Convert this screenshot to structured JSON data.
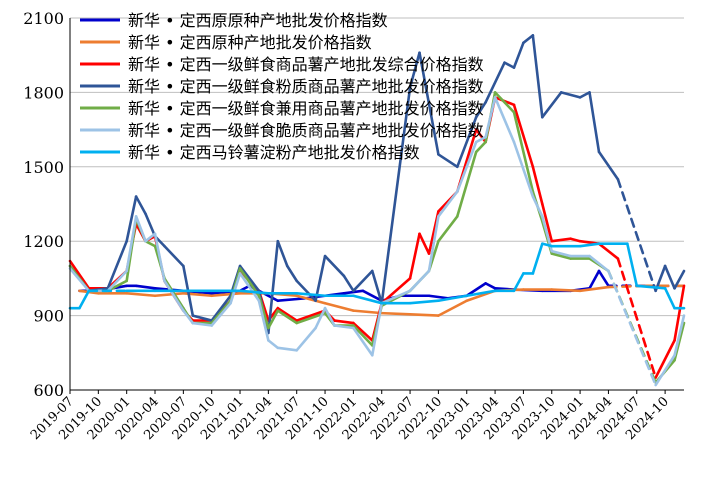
{
  "chart_data": {
    "type": "line",
    "title": "",
    "xlabel": "",
    "ylabel": "",
    "ylim": [
      600,
      2100
    ],
    "xlim": [
      "2019-07",
      "2024-12"
    ],
    "y_ticks": [
      600,
      900,
      1200,
      1500,
      1800,
      2100
    ],
    "x_ticks": [
      "2019-07",
      "2019-10",
      "2020-01",
      "2020-04",
      "2020-07",
      "2020-10",
      "2021-01",
      "2021-04",
      "2021-07",
      "2021-10",
      "2022-01",
      "2022-04",
      "2022-07",
      "2022-10",
      "2023-01",
      "2023-04",
      "2023-07",
      "2023-10",
      "2024-01",
      "2024-04",
      "2024-07",
      "2024-10"
    ],
    "grid": "horizontal",
    "legend_position": "top-left",
    "series": [
      {
        "name": "新华 • 定西原原种产地批发价格指数",
        "color": "#0000cc",
        "points": [
          [
            "2019-08",
            1000
          ],
          [
            "2019-10",
            1000
          ],
          [
            "2020-01",
            1020
          ],
          [
            "2020-02",
            1020
          ],
          [
            "2020-04",
            1010
          ],
          [
            "2020-07",
            1000
          ],
          [
            "2020-10",
            990
          ],
          [
            "2021-01",
            1000
          ],
          [
            "2021-02",
            1020
          ],
          [
            "2021-03",
            1000
          ],
          [
            "2021-05",
            960
          ],
          [
            "2021-08",
            970
          ],
          [
            "2021-10",
            980
          ],
          [
            "2021-12",
            990
          ],
          [
            "2022-02",
            1000
          ],
          [
            "2022-04",
            960
          ],
          [
            "2022-06",
            980
          ],
          [
            "2022-09",
            980
          ],
          [
            "2022-11",
            970
          ],
          [
            "2023-01",
            980
          ],
          [
            "2023-03",
            1030
          ],
          [
            "2023-04",
            1010
          ],
          [
            "2023-06",
            1005
          ],
          [
            "2023-09",
            1000
          ],
          [
            "2023-12",
            1000
          ],
          [
            "2024-02",
            1010
          ],
          [
            "2024-03",
            1080
          ],
          [
            "2024-04",
            1020
          ],
          [
            "2024-08",
            1020
          ],
          [
            "2024-12",
            1020
          ]
        ]
      },
      {
        "name": "新华 • 定西原种产地批发价格指数",
        "color": "#ed7d31",
        "points": [
          [
            "2019-08",
            1000
          ],
          [
            "2019-10",
            990
          ],
          [
            "2020-01",
            990
          ],
          [
            "2020-04",
            980
          ],
          [
            "2020-07",
            990
          ],
          [
            "2020-10",
            980
          ],
          [
            "2021-01",
            990
          ],
          [
            "2021-04",
            990
          ],
          [
            "2021-07",
            980
          ],
          [
            "2021-10",
            950
          ],
          [
            "2022-01",
            920
          ],
          [
            "2022-04",
            910
          ],
          [
            "2022-07",
            905
          ],
          [
            "2022-10",
            900
          ],
          [
            "2023-01",
            960
          ],
          [
            "2023-04",
            1000
          ],
          [
            "2023-07",
            1005
          ],
          [
            "2023-10",
            1005
          ],
          [
            "2024-01",
            1000
          ],
          [
            "2024-04",
            1015
          ],
          [
            "2024-08",
            1020
          ],
          [
            "2024-12",
            1020
          ]
        ]
      },
      {
        "name": "新华 • 定西一级鲜食商品薯产地批发综合价格指数",
        "color": "#ff0000",
        "points": [
          [
            "2019-07",
            1120
          ],
          [
            "2019-09",
            1010
          ],
          [
            "2019-11",
            1010
          ],
          [
            "2020-01",
            1080
          ],
          [
            "2020-02",
            1270
          ],
          [
            "2020-03",
            1200
          ],
          [
            "2020-04",
            1220
          ],
          [
            "2020-05",
            1040
          ],
          [
            "2020-07",
            920
          ],
          [
            "2020-08",
            880
          ],
          [
            "2020-10",
            880
          ],
          [
            "2020-12",
            960
          ],
          [
            "2021-01",
            1080
          ],
          [
            "2021-03",
            1000
          ],
          [
            "2021-04",
            880
          ],
          [
            "2021-05",
            930
          ],
          [
            "2021-07",
            880
          ],
          [
            "2021-10",
            920
          ],
          [
            "2021-11",
            880
          ],
          [
            "2022-01",
            870
          ],
          [
            "2022-03",
            800
          ],
          [
            "2022-04",
            950
          ],
          [
            "2022-07",
            1050
          ],
          [
            "2022-08",
            1230
          ],
          [
            "2022-09",
            1150
          ],
          [
            "2022-10",
            1320
          ],
          [
            "2022-12",
            1400
          ],
          [
            "2023-02",
            1650
          ],
          [
            "2023-03",
            1600
          ],
          [
            "2023-04",
            1780
          ],
          [
            "2023-06",
            1750
          ],
          [
            "2023-08",
            1500
          ],
          [
            "2023-09",
            1350
          ],
          [
            "2023-10",
            1200
          ],
          [
            "2023-12",
            1210
          ],
          [
            "2024-01",
            1200
          ],
          [
            "2024-03",
            1190
          ],
          [
            "2024-05",
            1130
          ],
          [
            "2024-09",
            650
          ],
          [
            "2024-11",
            800
          ],
          [
            "2024-12",
            1020
          ]
        ]
      },
      {
        "name": "新华 • 定西一级鲜食粉质商品薯产地批发价格指数",
        "color": "#2f5597",
        "points": [
          [
            "2019-07",
            1100
          ],
          [
            "2019-09",
            1000
          ],
          [
            "2019-11",
            1010
          ],
          [
            "2020-01",
            1200
          ],
          [
            "2020-02",
            1380
          ],
          [
            "2020-03",
            1310
          ],
          [
            "2020-04",
            1220
          ],
          [
            "2020-05",
            1180
          ],
          [
            "2020-07",
            1100
          ],
          [
            "2020-08",
            900
          ],
          [
            "2020-10",
            880
          ],
          [
            "2020-12",
            980
          ],
          [
            "2021-01",
            1100
          ],
          [
            "2021-03",
            1000
          ],
          [
            "2021-04",
            830
          ],
          [
            "2021-05",
            1200
          ],
          [
            "2021-06",
            1100
          ],
          [
            "2021-07",
            1040
          ],
          [
            "2021-09",
            960
          ],
          [
            "2021-10",
            1140
          ],
          [
            "2021-12",
            1060
          ],
          [
            "2022-01",
            1000
          ],
          [
            "2022-03",
            1080
          ],
          [
            "2022-04",
            950
          ],
          [
            "2022-07",
            1820
          ],
          [
            "2022-08",
            1960
          ],
          [
            "2022-10",
            1550
          ],
          [
            "2022-12",
            1500
          ],
          [
            "2023-02",
            1700
          ],
          [
            "2023-03",
            1760
          ],
          [
            "2023-05",
            1920
          ],
          [
            "2023-06",
            1900
          ],
          [
            "2023-07",
            2000
          ],
          [
            "2023-08",
            2030
          ],
          [
            "2023-09",
            1700
          ],
          [
            "2023-11",
            1800
          ],
          [
            "2024-01",
            1780
          ],
          [
            "2024-02",
            1800
          ],
          [
            "2024-03",
            1560
          ],
          [
            "2024-05",
            1450
          ],
          [
            "2024-09",
            1000
          ],
          [
            "2024-10",
            1100
          ],
          [
            "2024-11",
            1010
          ],
          [
            "2024-12",
            1080
          ]
        ]
      },
      {
        "name": "新华 • 定西一级鲜食兼用商品薯产地批发价格指数",
        "color": "#70ad47",
        "points": [
          [
            "2019-07",
            1100
          ],
          [
            "2019-09",
            1000
          ],
          [
            "2019-11",
            1000
          ],
          [
            "2020-01",
            1040
          ],
          [
            "2020-02",
            1290
          ],
          [
            "2020-03",
            1200
          ],
          [
            "2020-04",
            1180
          ],
          [
            "2020-05",
            1050
          ],
          [
            "2020-07",
            930
          ],
          [
            "2020-08",
            870
          ],
          [
            "2020-10",
            870
          ],
          [
            "2020-12",
            960
          ],
          [
            "2021-01",
            1090
          ],
          [
            "2021-03",
            980
          ],
          [
            "2021-04",
            850
          ],
          [
            "2021-05",
            920
          ],
          [
            "2021-07",
            870
          ],
          [
            "2021-10",
            910
          ],
          [
            "2021-11",
            860
          ],
          [
            "2022-01",
            860
          ],
          [
            "2022-03",
            780
          ],
          [
            "2022-04",
            940
          ],
          [
            "2022-07",
            1000
          ],
          [
            "2022-09",
            1080
          ],
          [
            "2022-10",
            1200
          ],
          [
            "2022-12",
            1300
          ],
          [
            "2023-02",
            1560
          ],
          [
            "2023-03",
            1600
          ],
          [
            "2023-04",
            1800
          ],
          [
            "2023-06",
            1720
          ],
          [
            "2023-08",
            1400
          ],
          [
            "2023-09",
            1280
          ],
          [
            "2023-10",
            1150
          ],
          [
            "2023-12",
            1130
          ],
          [
            "2024-02",
            1130
          ],
          [
            "2024-04",
            1080
          ],
          [
            "2024-09",
            630
          ],
          [
            "2024-11",
            720
          ],
          [
            "2024-12",
            870
          ]
        ]
      },
      {
        "name": "新华 • 定西一级鲜食脆质商品薯产地批发价格指数",
        "color": "#9dc3e6",
        "points": [
          [
            "2019-07",
            1090
          ],
          [
            "2019-09",
            1000
          ],
          [
            "2019-11",
            1000
          ],
          [
            "2020-01",
            1080
          ],
          [
            "2020-02",
            1300
          ],
          [
            "2020-03",
            1200
          ],
          [
            "2020-04",
            1230
          ],
          [
            "2020-05",
            1040
          ],
          [
            "2020-07",
            920
          ],
          [
            "2020-08",
            870
          ],
          [
            "2020-10",
            860
          ],
          [
            "2020-12",
            950
          ],
          [
            "2021-01",
            1070
          ],
          [
            "2021-03",
            960
          ],
          [
            "2021-04",
            800
          ],
          [
            "2021-05",
            770
          ],
          [
            "2021-07",
            760
          ],
          [
            "2021-09",
            850
          ],
          [
            "2021-10",
            930
          ],
          [
            "2021-11",
            860
          ],
          [
            "2022-01",
            850
          ],
          [
            "2022-03",
            740
          ],
          [
            "2022-04",
            950
          ],
          [
            "2022-07",
            1000
          ],
          [
            "2022-09",
            1080
          ],
          [
            "2022-10",
            1300
          ],
          [
            "2022-12",
            1400
          ],
          [
            "2023-02",
            1600
          ],
          [
            "2023-03",
            1620
          ],
          [
            "2023-04",
            1780
          ],
          [
            "2023-06",
            1600
          ],
          [
            "2023-08",
            1380
          ],
          [
            "2023-09",
            1300
          ],
          [
            "2023-10",
            1160
          ],
          [
            "2023-12",
            1140
          ],
          [
            "2024-02",
            1140
          ],
          [
            "2024-04",
            1080
          ],
          [
            "2024-09",
            620
          ],
          [
            "2024-11",
            740
          ],
          [
            "2024-12",
            900
          ]
        ]
      },
      {
        "name": "新华 • 定西马铃薯淀粉产地批发价格指数",
        "color": "#00b0f0",
        "points": [
          [
            "2019-07",
            930
          ],
          [
            "2019-08",
            930
          ],
          [
            "2019-09",
            1000
          ],
          [
            "2020-01",
            1000
          ],
          [
            "2020-04",
            1000
          ],
          [
            "2020-07",
            1000
          ],
          [
            "2020-10",
            1000
          ],
          [
            "2021-01",
            1000
          ],
          [
            "2021-04",
            990
          ],
          [
            "2021-07",
            990
          ],
          [
            "2021-10",
            980
          ],
          [
            "2022-01",
            980
          ],
          [
            "2022-04",
            950
          ],
          [
            "2022-07",
            950
          ],
          [
            "2022-10",
            960
          ],
          [
            "2023-01",
            980
          ],
          [
            "2023-04",
            1000
          ],
          [
            "2023-06",
            1000
          ],
          [
            "2023-07",
            1070
          ],
          [
            "2023-08",
            1070
          ],
          [
            "2023-09",
            1190
          ],
          [
            "2023-10",
            1180
          ],
          [
            "2024-01",
            1180
          ],
          [
            "2024-03",
            1190
          ],
          [
            "2024-06",
            1190
          ],
          [
            "2024-07",
            1020
          ],
          [
            "2024-10",
            1010
          ],
          [
            "2024-11",
            930
          ],
          [
            "2024-12",
            930
          ]
        ]
      }
    ]
  }
}
